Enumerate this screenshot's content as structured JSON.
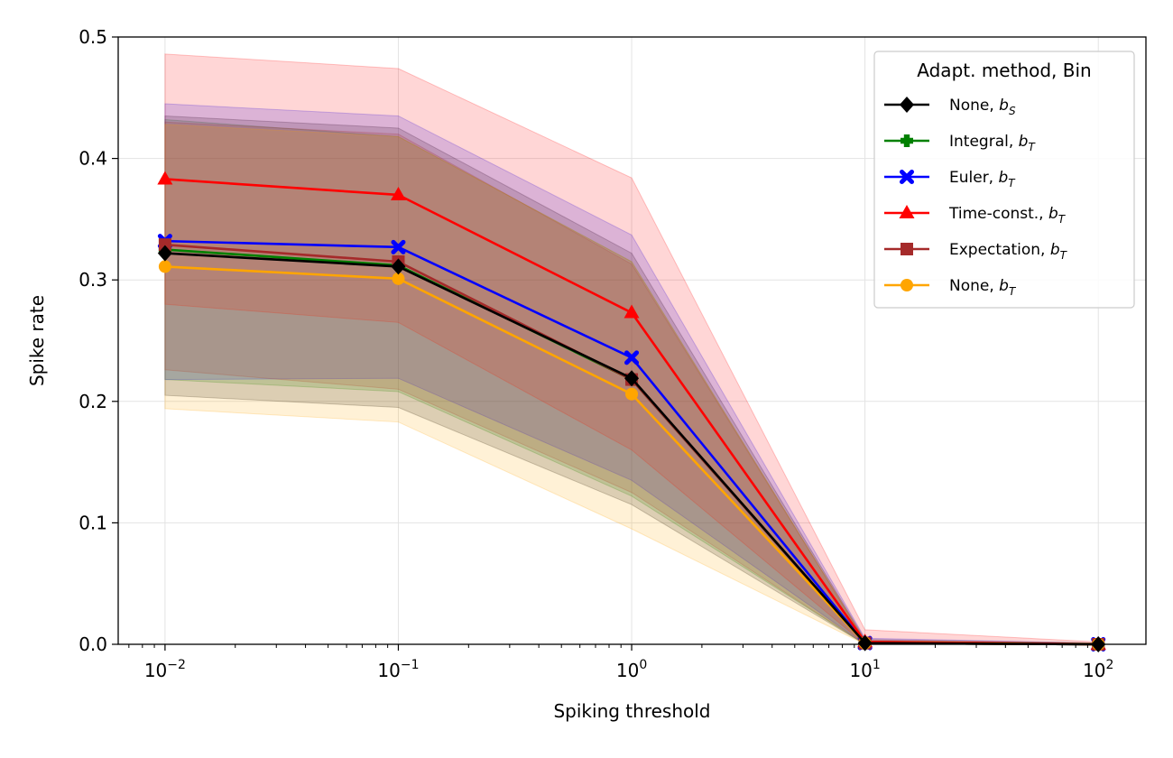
{
  "chart_data": {
    "type": "line",
    "xscale": "log",
    "xlabel": "Spiking threshold",
    "ylabel": "Spike rate",
    "xlim": [
      0.0063,
      160
    ],
    "ylim": [
      0,
      0.5
    ],
    "grid": true,
    "x": [
      0.01,
      0.1,
      1,
      10,
      100
    ],
    "xticks": [
      {
        "value": 0.01,
        "base": "10",
        "exp": "−2"
      },
      {
        "value": 0.1,
        "base": "10",
        "exp": "−1"
      },
      {
        "value": 1,
        "base": "10",
        "exp": "0"
      },
      {
        "value": 10,
        "base": "10",
        "exp": "1"
      },
      {
        "value": 100,
        "base": "10",
        "exp": "2"
      }
    ],
    "yticks": [
      {
        "value": 0.0,
        "label": "0.0"
      },
      {
        "value": 0.1,
        "label": "0.1"
      },
      {
        "value": 0.2,
        "label": "0.2"
      },
      {
        "value": 0.3,
        "label": "0.3"
      },
      {
        "value": 0.4,
        "label": "0.4"
      },
      {
        "value": 0.5,
        "label": "0.5"
      }
    ],
    "legend": {
      "title": "Adapt. method, Bin",
      "position": "top-right"
    },
    "series": [
      {
        "name": "None, bS",
        "label_main": "None, ",
        "label_var": "b",
        "label_sub": "S",
        "color": "#000000",
        "marker": "diamond",
        "values": [
          0.322,
          0.311,
          0.219,
          0.001,
          0.0
        ],
        "lower": [
          0.205,
          0.195,
          0.115,
          0.0,
          0.0
        ],
        "upper": [
          0.435,
          0.425,
          0.322,
          0.004,
          0.001
        ]
      },
      {
        "name": "Integral, bT",
        "label_main": "Integral, ",
        "label_var": "b",
        "label_sub": "T",
        "color": "#008000",
        "marker": "plus",
        "values": [
          0.325,
          0.312,
          0.218,
          0.001,
          0.0
        ],
        "lower": [
          0.218,
          0.208,
          0.122,
          0.0,
          0.0
        ],
        "upper": [
          0.432,
          0.418,
          0.315,
          0.003,
          0.001
        ]
      },
      {
        "name": "Euler, bT",
        "label_main": "Euler, ",
        "label_var": "b",
        "label_sub": "T",
        "color": "#0000ff",
        "marker": "x",
        "values": [
          0.332,
          0.327,
          0.236,
          0.001,
          0.0
        ],
        "lower": [
          0.218,
          0.219,
          0.135,
          0.0,
          0.0
        ],
        "upper": [
          0.445,
          0.435,
          0.337,
          0.005,
          0.001
        ]
      },
      {
        "name": "Time-const., bT",
        "label_main": "Time-const., ",
        "label_var": "b",
        "label_sub": "T",
        "color": "#ff0000",
        "marker": "triangle",
        "values": [
          0.383,
          0.37,
          0.273,
          0.002,
          0.0
        ],
        "lower": [
          0.28,
          0.265,
          0.16,
          0.0,
          0.0
        ],
        "upper": [
          0.486,
          0.474,
          0.384,
          0.012,
          0.002
        ]
      },
      {
        "name": "Expectation, bT",
        "label_main": "Expectation, ",
        "label_var": "b",
        "label_sub": "T",
        "color": "#a52a2a",
        "marker": "square",
        "values": [
          0.329,
          0.315,
          0.218,
          0.001,
          0.0
        ],
        "lower": [
          0.226,
          0.21,
          0.125,
          0.0,
          0.0
        ],
        "upper": [
          0.43,
          0.42,
          0.313,
          0.003,
          0.001
        ]
      },
      {
        "name": "None, bT",
        "label_main": "None, ",
        "label_var": "b",
        "label_sub": "T",
        "color": "#ffa500",
        "marker": "circle",
        "values": [
          0.311,
          0.301,
          0.206,
          0.001,
          0.0
        ],
        "lower": [
          0.194,
          0.183,
          0.095,
          0.0,
          0.0
        ],
        "upper": [
          0.428,
          0.418,
          0.315,
          0.003,
          0.001
        ]
      }
    ]
  }
}
